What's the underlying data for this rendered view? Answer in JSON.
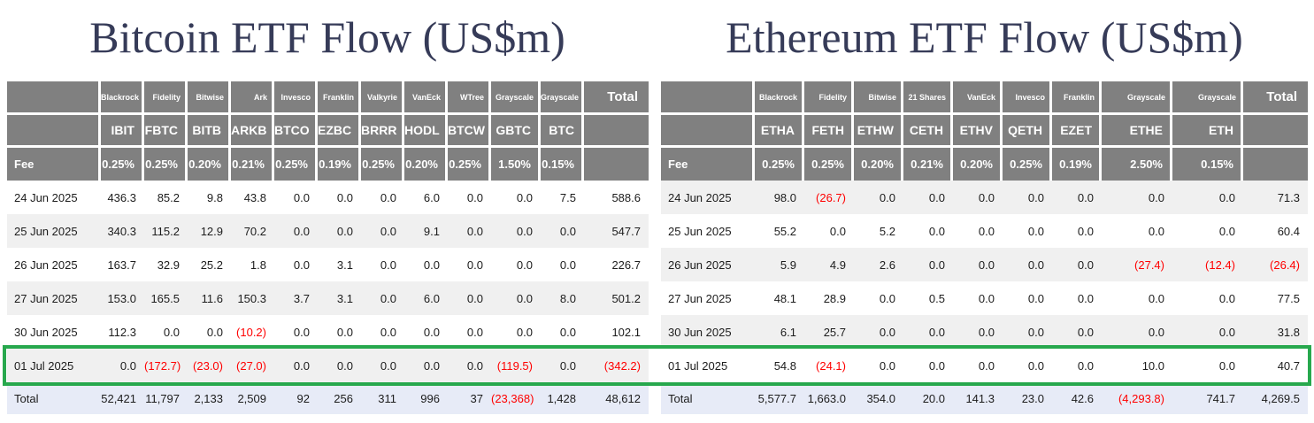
{
  "colors": {
    "header_bg": "#808080",
    "shaded_row_bg": "#f0f0f0",
    "total_row_bg": "#e7ebf7",
    "negative_text": "#ff0000",
    "highlight_border": "#27a84d",
    "title_text": "#363b58"
  },
  "chart_data": [
    {
      "type": "table",
      "title": "Bitcoin ETF Flow (US$m)",
      "fee_label": "Fee",
      "total_label": "Total",
      "total_row_label": "Total",
      "issuers": [
        "Blackrock",
        "Fidelity",
        "Bitwise",
        "Ark",
        "Invesco",
        "Franklin",
        "Valkyrie",
        "VanEck",
        "WTree",
        "Grayscale",
        "Grayscale"
      ],
      "tickers": [
        "IBIT",
        "FBTC",
        "BITB",
        "ARKB",
        "BTCO",
        "EZBC",
        "BRRR",
        "HODL",
        "BTCW",
        "GBTC",
        "BTC"
      ],
      "fees": [
        "0.25%",
        "0.25%",
        "0.20%",
        "0.21%",
        "0.25%",
        "0.19%",
        "0.25%",
        "0.20%",
        "0.25%",
        "1.50%",
        "0.15%"
      ],
      "rows": [
        {
          "date": "24 Jun 2025",
          "values": [
            "436.3",
            "85.2",
            "9.8",
            "43.8",
            "0.0",
            "0.0",
            "0.0",
            "6.0",
            "0.0",
            "0.0",
            "7.5"
          ],
          "total": "588.6",
          "highlight": false
        },
        {
          "date": "25 Jun 2025",
          "values": [
            "340.3",
            "115.2",
            "12.9",
            "70.2",
            "0.0",
            "0.0",
            "0.0",
            "9.1",
            "0.0",
            "0.0",
            "0.0"
          ],
          "total": "547.7",
          "highlight": false
        },
        {
          "date": "26 Jun 2025",
          "values": [
            "163.7",
            "32.9",
            "25.2",
            "1.8",
            "0.0",
            "3.1",
            "0.0",
            "0.0",
            "0.0",
            "0.0",
            "0.0"
          ],
          "total": "226.7",
          "highlight": false
        },
        {
          "date": "27 Jun 2025",
          "values": [
            "153.0",
            "165.5",
            "11.6",
            "150.3",
            "3.7",
            "3.1",
            "0.0",
            "6.0",
            "0.0",
            "0.0",
            "8.0"
          ],
          "total": "501.2",
          "highlight": false
        },
        {
          "date": "30 Jun 2025",
          "values": [
            "112.3",
            "0.0",
            "0.0",
            "(10.2)",
            "0.0",
            "0.0",
            "0.0",
            "0.0",
            "0.0",
            "0.0",
            "0.0"
          ],
          "total": "102.1",
          "highlight": false
        },
        {
          "date": "01 Jul 2025",
          "values": [
            "0.0",
            "(172.7)",
            "(23.0)",
            "(27.0)",
            "0.0",
            "0.0",
            "0.0",
            "0.0",
            "0.0",
            "(119.5)",
            "0.0"
          ],
          "total": "(342.2)",
          "highlight": true
        }
      ],
      "totals": {
        "values": [
          "52,421",
          "11,797",
          "2,133",
          "2,509",
          "92",
          "256",
          "311",
          "996",
          "37",
          "(23,368)",
          "1,428"
        ],
        "total": "48,612"
      }
    },
    {
      "type": "table",
      "title": "Ethereum ETF Flow (US$m)",
      "fee_label": "Fee",
      "total_label": "Total",
      "total_row_label": "Total",
      "issuers": [
        "Blackrock",
        "Fidelity",
        "Bitwise",
        "21 Shares",
        "VanEck",
        "Invesco",
        "Franklin",
        "Grayscale",
        "Grayscale"
      ],
      "tickers": [
        "ETHA",
        "FETH",
        "ETHW",
        "CETH",
        "ETHV",
        "QETH",
        "EZET",
        "ETHE",
        "ETH"
      ],
      "fees": [
        "0.25%",
        "0.25%",
        "0.20%",
        "0.21%",
        "0.20%",
        "0.25%",
        "0.19%",
        "2.50%",
        "0.15%"
      ],
      "rows": [
        {
          "date": "24 Jun 2025",
          "values": [
            "98.0",
            "(26.7)",
            "0.0",
            "0.0",
            "0.0",
            "0.0",
            "0.0",
            "0.0",
            "0.0"
          ],
          "total": "71.3",
          "highlight": false
        },
        {
          "date": "25 Jun 2025",
          "values": [
            "55.2",
            "0.0",
            "5.2",
            "0.0",
            "0.0",
            "0.0",
            "0.0",
            "0.0",
            "0.0"
          ],
          "total": "60.4",
          "highlight": false
        },
        {
          "date": "26 Jun 2025",
          "values": [
            "5.9",
            "4.9",
            "2.6",
            "0.0",
            "0.0",
            "0.0",
            "0.0",
            "(27.4)",
            "(12.4)"
          ],
          "total": "(26.4)",
          "highlight": false
        },
        {
          "date": "27 Jun 2025",
          "values": [
            "48.1",
            "28.9",
            "0.0",
            "0.5",
            "0.0",
            "0.0",
            "0.0",
            "0.0",
            "0.0"
          ],
          "total": "77.5",
          "highlight": false
        },
        {
          "date": "30 Jun 2025",
          "values": [
            "6.1",
            "25.7",
            "0.0",
            "0.0",
            "0.0",
            "0.0",
            "0.0",
            "0.0",
            "0.0"
          ],
          "total": "31.8",
          "highlight": false
        },
        {
          "date": "01 Jul 2025",
          "values": [
            "54.8",
            "(24.1)",
            "0.0",
            "0.0",
            "0.0",
            "0.0",
            "0.0",
            "10.0",
            "0.0"
          ],
          "total": "40.7",
          "highlight": true
        }
      ],
      "totals": {
        "values": [
          "5,577.7",
          "1,663.0",
          "354.0",
          "20.0",
          "141.3",
          "23.0",
          "42.6",
          "(4,293.8)",
          "741.7"
        ],
        "total": "4,269.5"
      }
    }
  ]
}
